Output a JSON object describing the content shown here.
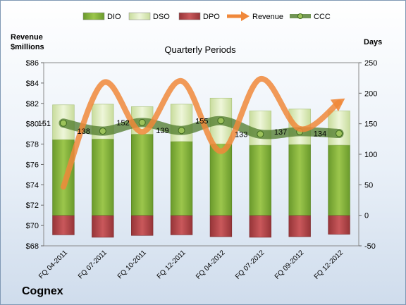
{
  "company": "Cognex",
  "chart_data": {
    "type": "bar",
    "title": "Quarterly Periods",
    "ylabel_left_line1": "Revenue",
    "ylabel_left_line2": "$millions",
    "ylabel_right": "Days",
    "categories": [
      "FQ 04-2011",
      "FQ 07-2011",
      "FQ 10-2011",
      "FQ 12-2011",
      "FQ 04-2012",
      "FQ 07-2012",
      "FQ 09-2012",
      "FQ 12-2012"
    ],
    "left_axis": {
      "min": 68,
      "max": 86,
      "step": 2,
      "prefix": "$"
    },
    "right_axis": {
      "min": -50,
      "max": 250,
      "step": 50
    },
    "legend_position": "top",
    "grid": false,
    "series": [
      {
        "name": "DIO",
        "kind": "stacked-bar",
        "axis": "right",
        "color": "#7fae3a",
        "values": [
          124,
          125,
          133,
          121,
          117,
          115,
          116,
          115
        ]
      },
      {
        "name": "DSO",
        "kind": "stacked-bar",
        "axis": "right",
        "color": "#dceab9",
        "values": [
          57,
          57,
          45,
          61,
          75,
          56,
          58,
          56
        ]
      },
      {
        "name": "DPO",
        "kind": "bar",
        "axis": "right",
        "color": "#b3474a",
        "values": [
          -32,
          -36,
          -33,
          -32,
          -35,
          -36,
          -35,
          -31
        ]
      },
      {
        "name": "Revenue",
        "kind": "line",
        "axis": "left",
        "color": "#f0883a",
        "values": [
          73.8,
          84.0,
          79.2,
          84.2,
          77.3,
          84.4,
          79.5,
          82.1
        ]
      },
      {
        "name": "CCC",
        "kind": "line",
        "axis": "right",
        "color": "#4e7a2a",
        "values": [
          151,
          138,
          152,
          139,
          155,
          133,
          137,
          134
        ]
      }
    ],
    "data_labels": [
      "151",
      "138",
      "152",
      "139",
      "155",
      "133",
      "137",
      "134"
    ]
  }
}
